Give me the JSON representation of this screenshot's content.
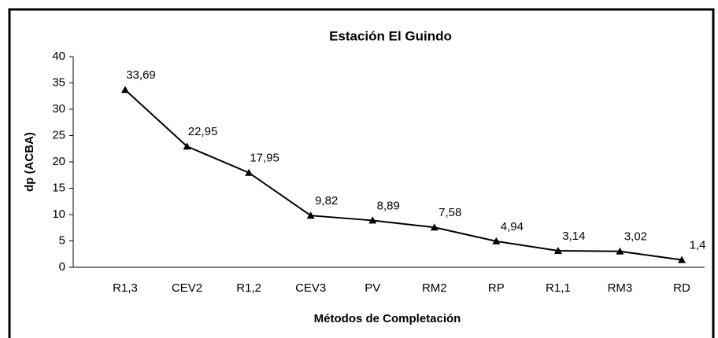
{
  "chart_data": {
    "type": "line",
    "title": "Estación El Guindo",
    "x_label": "Métodos de Completación",
    "y_label": "dp (ACBA)",
    "categories": [
      "R1,3",
      "CEV2",
      "R1,2",
      "CEV3",
      "PV",
      "RM2",
      "RP",
      "R1,1",
      "RM3",
      "RD"
    ],
    "values": [
      33.69,
      22.95,
      17.95,
      9.82,
      8.89,
      7.58,
      4.94,
      3.14,
      3.02,
      1.4
    ],
    "value_labels": [
      "33,69",
      "22,95",
      "17,95",
      "9,82",
      "8,89",
      "7,58",
      "4,94",
      "3,14",
      "3,02",
      "1,4"
    ],
    "color": "#000000",
    "ylim": [
      0,
      40
    ],
    "yticks": [
      0,
      5,
      10,
      15,
      20,
      25,
      30,
      35,
      40
    ],
    "grid": false
  }
}
